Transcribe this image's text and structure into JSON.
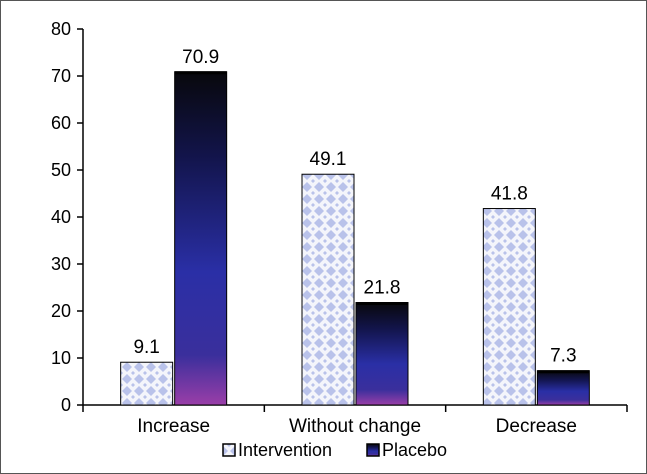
{
  "chart_data": {
    "type": "bar",
    "categories": [
      "Increase",
      "Without change",
      "Decrease"
    ],
    "series": [
      {
        "name": "Intervention",
        "values": [
          9.1,
          49.1,
          41.8
        ],
        "data_labels": [
          "9.1",
          "49.1",
          "41.8"
        ],
        "color": "#c8d0f0",
        "pattern": "diamond-checker"
      },
      {
        "name": "Placebo",
        "values": [
          70.9,
          21.8,
          7.3
        ],
        "data_labels": [
          "70.9",
          "21.8",
          "7.3"
        ],
        "color": "#1a1d7a",
        "gradient": [
          "#0a0a12",
          "#2b2fa8",
          "#8a3aa6"
        ]
      }
    ],
    "ylim": [
      0,
      80
    ],
    "yticks": [
      "0",
      "10",
      "20",
      "30",
      "40",
      "50",
      "60",
      "70",
      "80"
    ],
    "ytick_values": [
      0,
      10,
      20,
      30,
      40,
      50,
      60,
      70,
      80
    ],
    "grid": false,
    "legend": "bottom-center",
    "title": "",
    "xlabel": "",
    "ylabel": ""
  }
}
